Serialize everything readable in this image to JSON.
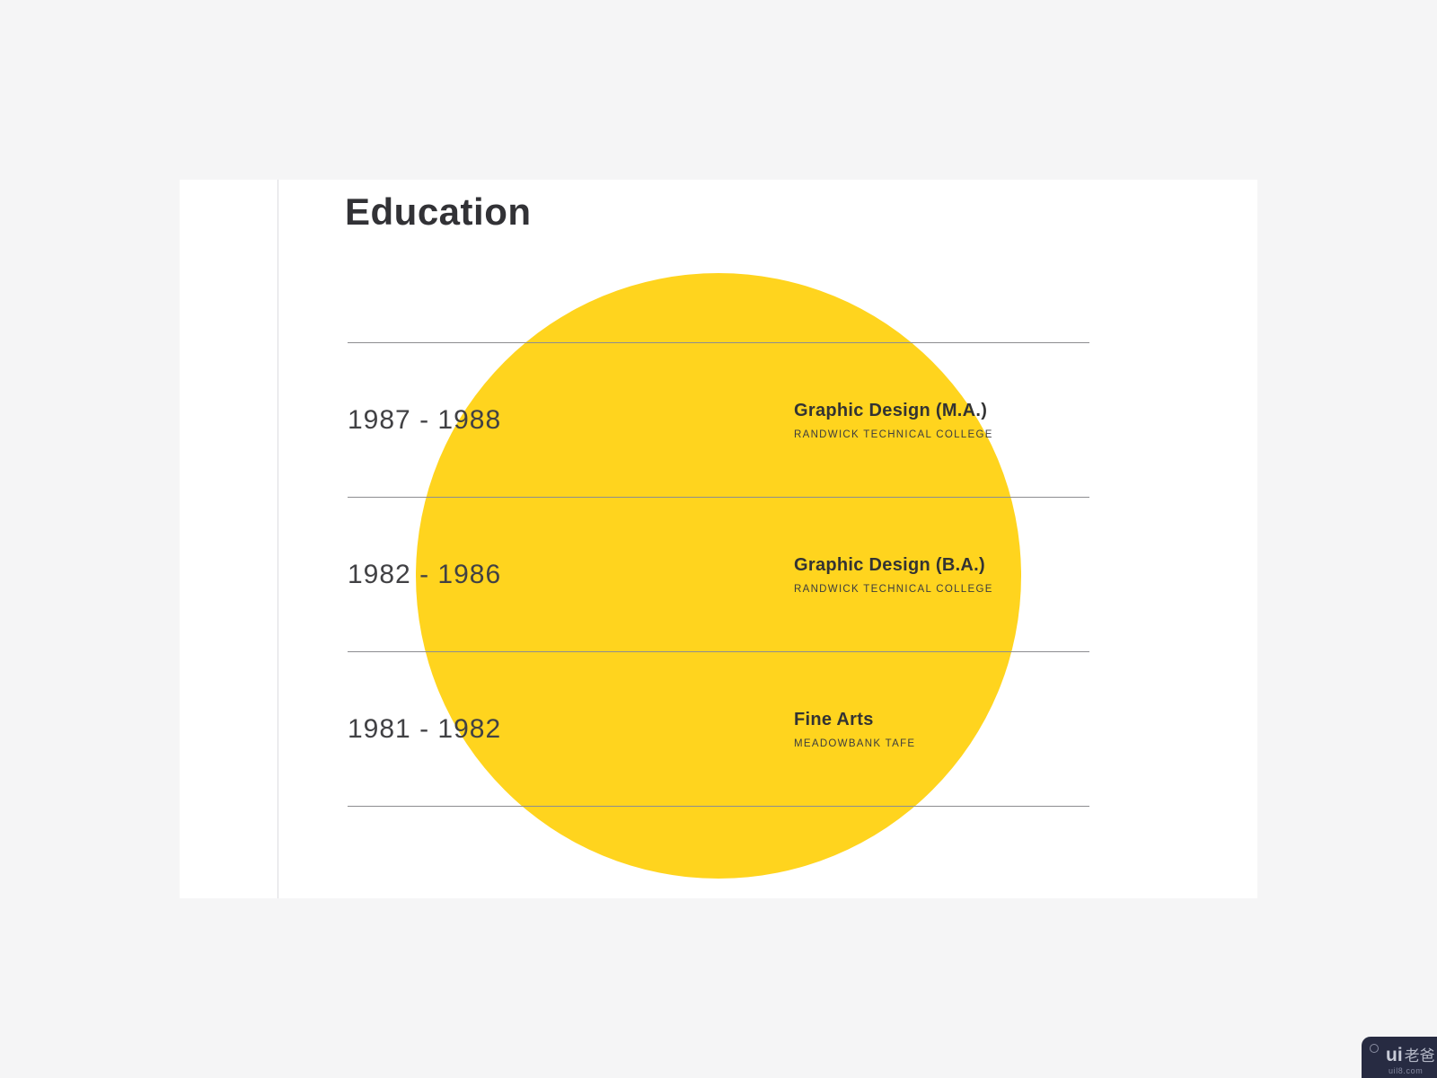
{
  "education": {
    "section_title": "Education",
    "entries": [
      {
        "period": "1987 - 1988",
        "degree": "Graphic Design (M.A.)",
        "school": "RANDWICK TECHNICAL COLLEGE"
      },
      {
        "period": "1982 - 1986",
        "degree": "Graphic Design (B.A.)",
        "school": "RANDWICK TECHNICAL COLLEGE"
      },
      {
        "period": "1981 - 1982",
        "degree": "Fine Arts",
        "school": "MEADOWBANK TAFE"
      }
    ]
  },
  "watermark": {
    "logo_text": "ui",
    "logo_cjk": "老爸",
    "site_url": "uil8.com"
  },
  "colors": {
    "background": "#F5F5F6",
    "page": "#FFFFFF",
    "accent_circle_yellow": "#FFD41E",
    "rule_line": "#8D8D90",
    "margin_divider": "#DCDCE0",
    "text_primary": "#333333",
    "text_period": "#414144",
    "watermark_bg": "#272B42"
  }
}
